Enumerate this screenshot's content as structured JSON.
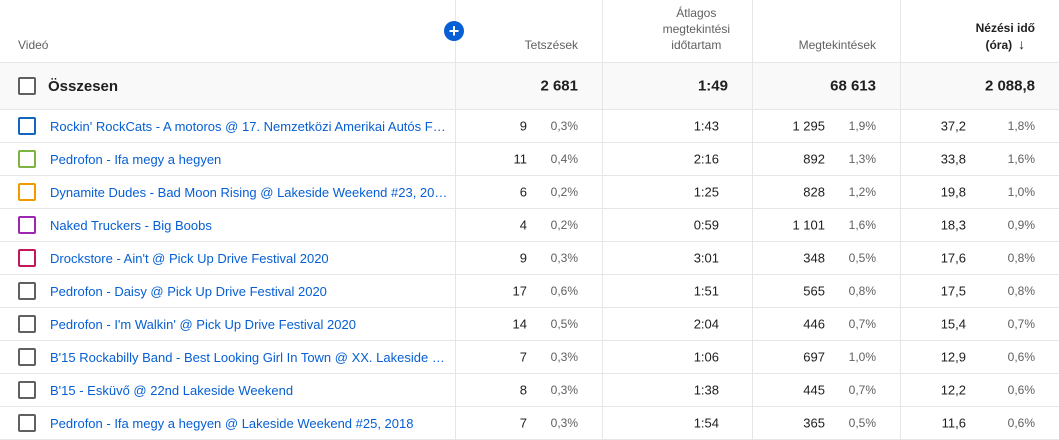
{
  "header": {
    "video_label": "Videó",
    "likes_label": "Tetszések",
    "avg_label_1": "Átlagos",
    "avg_label_2": "megtekintési",
    "avg_label_3": "időtartam",
    "views_label": "Megtekintések",
    "watch_label_1": "Nézési idő",
    "watch_label_2": "(óra)",
    "add_icon": "plus-icon",
    "sort_icon": "arrow-down-icon"
  },
  "total": {
    "label": "Összesen",
    "likes": "2 681",
    "avg": "1:49",
    "views": "68 613",
    "watch": "2 088,8"
  },
  "rows": [
    {
      "title": "Rockin' RockCats - A motoros @ 17. Nemzetközi Amerikai Autós Fe...",
      "color": "#1565c0",
      "likes": "9",
      "likes_pct": "0,3%",
      "avg": "1:43",
      "views": "1 295",
      "views_pct": "1,9%",
      "watch": "37,2",
      "watch_pct": "1,8%"
    },
    {
      "title": "Pedrofon - Ifa megy a hegyen",
      "color": "#7cb342",
      "likes": "11",
      "likes_pct": "0,4%",
      "avg": "2:16",
      "views": "892",
      "views_pct": "1,3%",
      "watch": "33,8",
      "watch_pct": "1,6%"
    },
    {
      "title": "Dynamite Dudes - Bad Moon Rising @ Lakeside Weekend #23, 2016",
      "color": "#f29900",
      "likes": "6",
      "likes_pct": "0,2%",
      "avg": "1:25",
      "views": "828",
      "views_pct": "1,2%",
      "watch": "19,8",
      "watch_pct": "1,0%"
    },
    {
      "title": "Naked Truckers - Big Boobs",
      "color": "#9c27b0",
      "likes": "4",
      "likes_pct": "0,2%",
      "avg": "0:59",
      "views": "1 101",
      "views_pct": "1,6%",
      "watch": "18,3",
      "watch_pct": "0,9%"
    },
    {
      "title": "Drockstore - Ain't @ Pick Up Drive Festival 2020",
      "color": "#c2185b",
      "likes": "9",
      "likes_pct": "0,3%",
      "avg": "3:01",
      "views": "348",
      "views_pct": "0,5%",
      "watch": "17,6",
      "watch_pct": "0,8%"
    },
    {
      "title": "Pedrofon - Daisy @ Pick Up Drive Festival 2020",
      "color": "#606060",
      "likes": "17",
      "likes_pct": "0,6%",
      "avg": "1:51",
      "views": "565",
      "views_pct": "0,8%",
      "watch": "17,5",
      "watch_pct": "0,8%"
    },
    {
      "title": "Pedrofon - I'm Walkin' @ Pick Up Drive Festival 2020",
      "color": "#606060",
      "likes": "14",
      "likes_pct": "0,5%",
      "avg": "2:04",
      "views": "446",
      "views_pct": "0,7%",
      "watch": "15,4",
      "watch_pct": "0,7%"
    },
    {
      "title": "B'15 Rockabilly Band - Best Looking Girl In Town @ XX. Lakeside W...",
      "color": "#606060",
      "likes": "7",
      "likes_pct": "0,3%",
      "avg": "1:06",
      "views": "697",
      "views_pct": "1,0%",
      "watch": "12,9",
      "watch_pct": "0,6%"
    },
    {
      "title": "B'15 - Esküvő @ 22nd Lakeside Weekend",
      "color": "#606060",
      "likes": "8",
      "likes_pct": "0,3%",
      "avg": "1:38",
      "views": "445",
      "views_pct": "0,7%",
      "watch": "12,2",
      "watch_pct": "0,6%"
    },
    {
      "title": "Pedrofon - Ifa megy a hegyen @ Lakeside Weekend #25, 2018",
      "color": "#606060",
      "likes": "7",
      "likes_pct": "0,3%",
      "avg": "1:54",
      "views": "365",
      "views_pct": "0,5%",
      "watch": "11,6",
      "watch_pct": "0,6%"
    }
  ]
}
